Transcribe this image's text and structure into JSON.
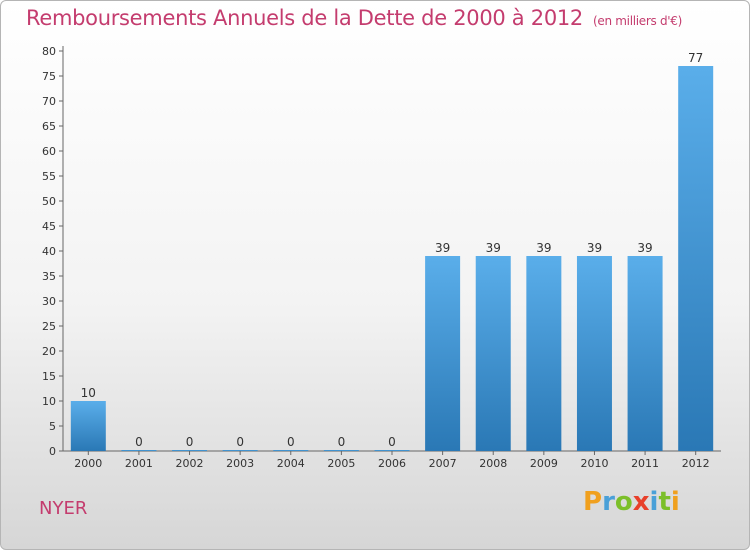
{
  "chart_data": {
    "type": "bar",
    "title": "Remboursements Annuels de la Dette de 2000 à 2012",
    "unit": "(en milliers d'€)",
    "categories": [
      "2000",
      "2001",
      "2002",
      "2003",
      "2004",
      "2005",
      "2006",
      "2007",
      "2008",
      "2009",
      "2010",
      "2011",
      "2012"
    ],
    "values": [
      10,
      0,
      0,
      0,
      0,
      0,
      0,
      39,
      39,
      39,
      39,
      39,
      77
    ],
    "ylim": [
      0,
      80
    ],
    "yticks": [
      0,
      5,
      10,
      15,
      20,
      25,
      30,
      35,
      40,
      45,
      50,
      55,
      60,
      65,
      70,
      75,
      80
    ],
    "xlabel": "",
    "ylabel": "",
    "grid": false,
    "colors": {
      "bar_top": "#5aaeea",
      "bar_bottom": "#2a78b5",
      "title": "#c43c6e"
    }
  },
  "commune": "NYER",
  "logo": {
    "letters": [
      "P",
      "r",
      "o",
      "x",
      "i",
      "t",
      "i"
    ],
    "colors": [
      "#f0a01e",
      "#4aa0d8",
      "#7cbf2a",
      "#e8402a",
      "#4aa0d8",
      "#7cbf2a",
      "#f0a01e"
    ]
  }
}
